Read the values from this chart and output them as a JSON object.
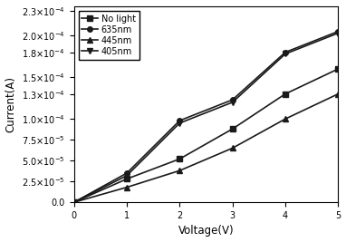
{
  "xlabel": "Voltage(V)",
  "ylabel": "Current(A)",
  "xlim": [
    0,
    5
  ],
  "ylim": [
    0,
    0.000235
  ],
  "yticks": [
    0.0,
    2.5e-05,
    5e-05,
    7.5e-05,
    0.0001,
    0.00013,
    0.00015,
    0.00018,
    0.0002,
    0.00023
  ],
  "ytick_labels": [
    "0.0",
    "2.5×10⁻⁵",
    "5.0×10⁻⁵",
    "7.5×10⁻⁵",
    "1.0×10⁻⁴",
    "1.3×10⁻⁴",
    "1.5×10⁻⁴",
    "1.8×10⁻⁴",
    "2.0×10⁻⁴",
    "2.3×10⁻⁴"
  ],
  "xticks": [
    0,
    1,
    2,
    3,
    4,
    5
  ],
  "series": [
    {
      "label": "No light",
      "marker": "s",
      "color": "#1a1a1a",
      "x": [
        0,
        1,
        2,
        3,
        4,
        5
      ],
      "y": [
        0,
        2.8e-05,
        5.2e-05,
        8.8e-05,
        0.00013,
        0.00016
      ]
    },
    {
      "label": "635nm",
      "marker": "o",
      "color": "#1a1a1a",
      "x": [
        0,
        1,
        2,
        3,
        4,
        5
      ],
      "y": [
        0,
        3.5e-05,
        9.8e-05,
        0.000123,
        0.00018,
        0.000205
      ]
    },
    {
      "label": "445nm",
      "marker": "^",
      "color": "#1a1a1a",
      "x": [
        0,
        1,
        2,
        3,
        4,
        5
      ],
      "y": [
        0,
        1.8e-05,
        3.8e-05,
        6.5e-05,
        0.0001,
        0.00013
      ]
    },
    {
      "label": "405nm",
      "marker": "v",
      "color": "#1a1a1a",
      "x": [
        0,
        1,
        2,
        3,
        4,
        5
      ],
      "y": [
        0,
        3.2e-05,
        9.5e-05,
        0.00012,
        0.000178,
        0.000203
      ]
    }
  ],
  "legend_loc": "upper left",
  "background_color": "#ffffff",
  "line_width": 1.2,
  "marker_size": 4,
  "font_size_ticks": 7,
  "font_size_label": 8.5
}
